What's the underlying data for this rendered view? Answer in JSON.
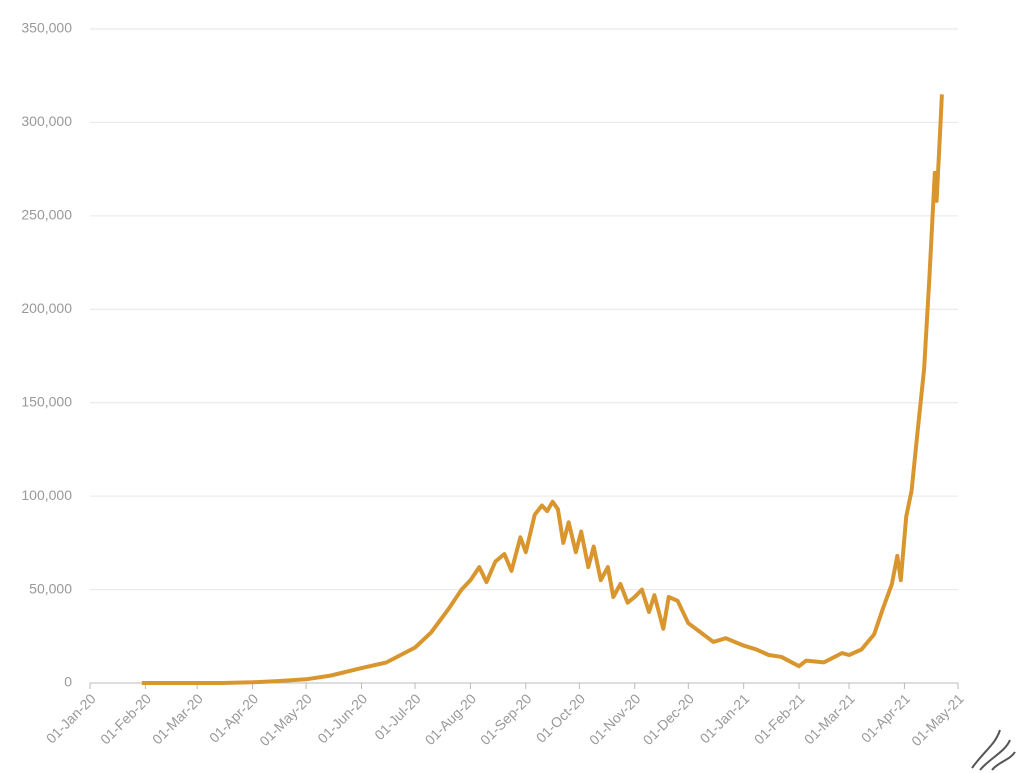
{
  "chart_data": {
    "type": "line",
    "x": [
      "2020-01-30",
      "2020-03-01",
      "2020-03-15",
      "2020-04-01",
      "2020-04-15",
      "2020-05-01",
      "2020-05-15",
      "2020-06-01",
      "2020-06-15",
      "2020-07-01",
      "2020-07-10",
      "2020-07-20",
      "2020-07-27",
      "2020-08-01",
      "2020-08-06",
      "2020-08-10",
      "2020-08-15",
      "2020-08-20",
      "2020-08-24",
      "2020-08-29",
      "2020-09-01",
      "2020-09-06",
      "2020-09-10",
      "2020-09-13",
      "2020-09-16",
      "2020-09-19",
      "2020-09-22",
      "2020-09-25",
      "2020-09-29",
      "2020-10-02",
      "2020-10-06",
      "2020-10-09",
      "2020-10-13",
      "2020-10-17",
      "2020-10-20",
      "2020-10-24",
      "2020-10-28",
      "2020-11-01",
      "2020-11-05",
      "2020-11-09",
      "2020-11-12",
      "2020-11-17",
      "2020-11-20",
      "2020-11-25",
      "2020-12-01",
      "2020-12-08",
      "2020-12-15",
      "2020-12-22",
      "2021-01-01",
      "2021-01-08",
      "2021-01-15",
      "2021-01-22",
      "2021-02-01",
      "2021-02-05",
      "2021-02-15",
      "2021-02-25",
      "2021-03-01",
      "2021-03-08",
      "2021-03-15",
      "2021-03-20",
      "2021-03-25",
      "2021-03-28",
      "2021-03-30",
      "2021-04-02",
      "2021-04-05",
      "2021-04-08",
      "2021-04-12",
      "2021-04-15",
      "2021-04-18",
      "2021-04-19",
      "2021-04-21",
      "2021-04-22"
    ],
    "series": [
      {
        "color": "#d9962e",
        "values": [
          1,
          0,
          20,
          400,
          1000,
          2000,
          4000,
          8000,
          11000,
          19000,
          27000,
          40000,
          50000,
          55000,
          62000,
          54000,
          65000,
          69000,
          60000,
          78000,
          70000,
          90000,
          95000,
          92000,
          97000,
          93000,
          75000,
          86000,
          70000,
          81000,
          62000,
          73000,
          55000,
          62000,
          46000,
          53000,
          43000,
          46000,
          50000,
          38000,
          47000,
          29000,
          46000,
          44000,
          32000,
          27000,
          22000,
          24000,
          20000,
          18000,
          15000,
          14000,
          9000,
          12000,
          11000,
          16000,
          15000,
          18000,
          26000,
          40000,
          53000,
          68000,
          55000,
          89000,
          103000,
          131000,
          168000,
          217000,
          273000,
          258000,
          295000,
          315000
        ]
      }
    ],
    "xlim": [
      "2020-01-01",
      "2021-05-01"
    ],
    "xticks": [
      {
        "value": "2020-01-01",
        "label": "01-Jan-20"
      },
      {
        "value": "2020-02-01",
        "label": "01-Feb-20"
      },
      {
        "value": "2020-03-01",
        "label": "01-Mar-20"
      },
      {
        "value": "2020-04-01",
        "label": "01-Apr-20"
      },
      {
        "value": "2020-05-01",
        "label": "01-May-20"
      },
      {
        "value": "2020-06-01",
        "label": "01-Jun-20"
      },
      {
        "value": "2020-07-01",
        "label": "01-Jul-20"
      },
      {
        "value": "2020-08-01",
        "label": "01-Aug-20"
      },
      {
        "value": "2020-09-01",
        "label": "01-Sep-20"
      },
      {
        "value": "2020-10-01",
        "label": "01-Oct-20"
      },
      {
        "value": "2020-11-01",
        "label": "01-Nov-20"
      },
      {
        "value": "2020-12-01",
        "label": "01-Dec-20"
      },
      {
        "value": "2021-01-01",
        "label": "01-Jan-21"
      },
      {
        "value": "2021-02-01",
        "label": "01-Feb-21"
      },
      {
        "value": "2021-03-01",
        "label": "01-Mar-21"
      },
      {
        "value": "2021-04-01",
        "label": "01-Apr-21"
      },
      {
        "value": "2021-05-01",
        "label": "01-May-21"
      }
    ],
    "ylim": [
      0,
      350000
    ],
    "yticks": [
      0,
      {
        "value": 50000,
        "label": "50,000"
      },
      {
        "value": 100000,
        "label": "100,000"
      },
      {
        "value": 150000,
        "label": "150,000"
      },
      {
        "value": 200000,
        "label": "200,000"
      },
      {
        "value": 250000,
        "label": "250,000"
      },
      {
        "value": 300000,
        "label": "300,000"
      },
      {
        "value": 350000,
        "label": "350,000"
      }
    ],
    "grid": true
  }
}
